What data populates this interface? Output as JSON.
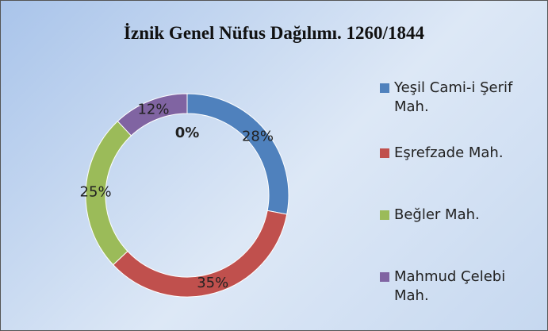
{
  "chart_data": {
    "type": "donut",
    "title": "İznik Genel Nüfus Dağılımı. 1260/1844",
    "categories": [
      "Yeşil Cami-i Şerif Mah.",
      "Eşrefzade Mah.",
      "Beğler Mah.",
      "Mahmud Çelebi Mah.",
      null
    ],
    "values": [
      28,
      35,
      25,
      12,
      0
    ],
    "value_labels": [
      "28%",
      "35%",
      "25%",
      "12%",
      "0%"
    ],
    "colors": [
      "#4f81bd",
      "#c0504d",
      "#9bbb59",
      "#8064a2",
      null
    ],
    "legend": "right"
  }
}
